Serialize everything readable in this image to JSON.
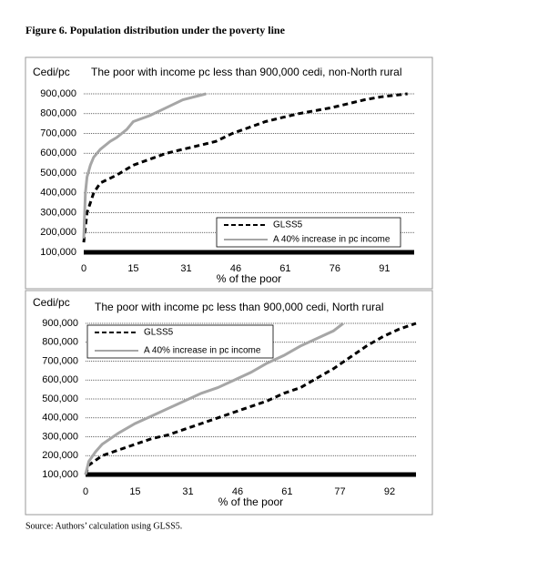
{
  "title": "Figure 6. Population distribution under the poverty line",
  "source": "Source: Authors’ calculation using GLSS5.",
  "chart_data": [
    {
      "type": "line",
      "title": "The poor with income pc less than 900,000 cedi, non-North rural",
      "y_label": "Cedi/pc",
      "x_label": "% of the poor",
      "xlim": [
        0,
        100
      ],
      "xticks": [
        0,
        15,
        31,
        46,
        61,
        76,
        91
      ],
      "ylim": [
        100000,
        900000
      ],
      "yticks": [
        {
          "value": 100000,
          "label": "100,000"
        },
        {
          "value": 200000,
          "label": "200,000"
        },
        {
          "value": 300000,
          "label": "300,000"
        },
        {
          "value": 400000,
          "label": "400,000"
        },
        {
          "value": 500000,
          "label": "500,000"
        },
        {
          "value": 600000,
          "label": "600,000"
        },
        {
          "value": 700000,
          "label": "700,000"
        },
        {
          "value": 800000,
          "label": "800,000"
        },
        {
          "value": 900000,
          "label": "900,000"
        }
      ],
      "grid": true,
      "legend": "lower right",
      "series": [
        {
          "name": "GLSS5",
          "color": "#000000",
          "dashed": true,
          "x": [
            0,
            1,
            3,
            5,
            10,
            15,
            20,
            25,
            30,
            35,
            40,
            45,
            50,
            55,
            60,
            65,
            70,
            75,
            80,
            85,
            90,
            98
          ],
          "values": [
            150000,
            300000,
            400000,
            450000,
            490000,
            540000,
            570000,
            600000,
            620000,
            640000,
            660000,
            700000,
            730000,
            760000,
            780000,
            800000,
            815000,
            830000,
            850000,
            870000,
            885000,
            900000
          ]
        },
        {
          "name": "A 40% increase in pc income",
          "color": "#a6a6a6",
          "dashed": false,
          "x": [
            0,
            0.5,
            1,
            2,
            3,
            5,
            8,
            10,
            13,
            15,
            20,
            25,
            30,
            37
          ],
          "values": [
            170000,
            400000,
            480000,
            540000,
            580000,
            620000,
            660000,
            680000,
            720000,
            760000,
            790000,
            830000,
            870000,
            900000
          ]
        }
      ]
    },
    {
      "type": "line",
      "title": "The poor with income pc less than 900,000 cedi, North rural",
      "y_label": "Cedi/pc",
      "x_label": "% of the poor",
      "xlim": [
        0,
        100
      ],
      "xticks": [
        0,
        15,
        31,
        46,
        61,
        77,
        92
      ],
      "ylim": [
        100000,
        900000
      ],
      "yticks": [
        {
          "value": 100000,
          "label": "100,000"
        },
        {
          "value": 200000,
          "label": "200,000"
        },
        {
          "value": 300000,
          "label": "300,000"
        },
        {
          "value": 400000,
          "label": "400,000"
        },
        {
          "value": 500000,
          "label": "500,000"
        },
        {
          "value": 600000,
          "label": "600,000"
        },
        {
          "value": 700000,
          "label": "700,000"
        },
        {
          "value": 800000,
          "label": "800,000"
        },
        {
          "value": 900000,
          "label": "900,000"
        }
      ],
      "grid": true,
      "legend": "upper left",
      "series": [
        {
          "name": "GLSS5",
          "color": "#000000",
          "dashed": true,
          "x": [
            0,
            1,
            5,
            10,
            15,
            20,
            25,
            30,
            35,
            40,
            45,
            50,
            55,
            60,
            65,
            70,
            75,
            80,
            85,
            90,
            95,
            100
          ],
          "values": [
            100000,
            150000,
            200000,
            230000,
            260000,
            290000,
            310000,
            340000,
            370000,
            400000,
            430000,
            460000,
            490000,
            530000,
            560000,
            610000,
            660000,
            720000,
            780000,
            830000,
            870000,
            900000
          ]
        },
        {
          "name": "A 40% increase in pc income",
          "color": "#a6a6a6",
          "dashed": false,
          "x": [
            0,
            1,
            3,
            5,
            10,
            15,
            20,
            25,
            30,
            35,
            40,
            45,
            50,
            55,
            60,
            65,
            70,
            75,
            78
          ],
          "values": [
            100000,
            170000,
            220000,
            260000,
            320000,
            370000,
            410000,
            450000,
            490000,
            530000,
            560000,
            600000,
            640000,
            690000,
            730000,
            780000,
            820000,
            860000,
            900000
          ]
        }
      ]
    }
  ]
}
